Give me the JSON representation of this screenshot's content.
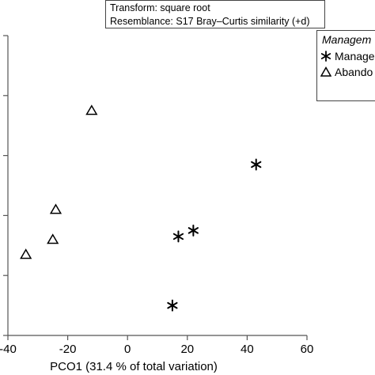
{
  "info": {
    "line1": "Transform: square root",
    "line2": "Resemblance: S17 Bray–Curtis similarity (+d)"
  },
  "legend": {
    "title": "Managem",
    "items": [
      {
        "label": "Manage",
        "marker": "asterisk-icon"
      },
      {
        "label": "Abando",
        "marker": "triangle-icon"
      }
    ]
  },
  "chart_data": {
    "type": "scatter",
    "xlabel": "PCO1 (31.4 % of total variation)",
    "ylabel": "",
    "xlim": [
      -40,
      60
    ],
    "xticks": [
      -40,
      -20,
      0,
      20,
      40,
      60
    ],
    "ylim": [
      -40,
      60
    ],
    "series": [
      {
        "name": "Manage",
        "marker": "asterisk",
        "points": [
          [
            43,
            17
          ],
          [
            22,
            -5
          ],
          [
            17,
            -7
          ],
          [
            15,
            -30
          ]
        ]
      },
      {
        "name": "Abando",
        "marker": "triangle",
        "points": [
          [
            -12,
            35
          ],
          [
            -24,
            2
          ],
          [
            -25,
            -8
          ],
          [
            -34,
            -13
          ]
        ]
      }
    ],
    "grid": false,
    "legend_position": "top-right"
  },
  "colors": {
    "axis": "#555555",
    "marker": "#000000"
  }
}
